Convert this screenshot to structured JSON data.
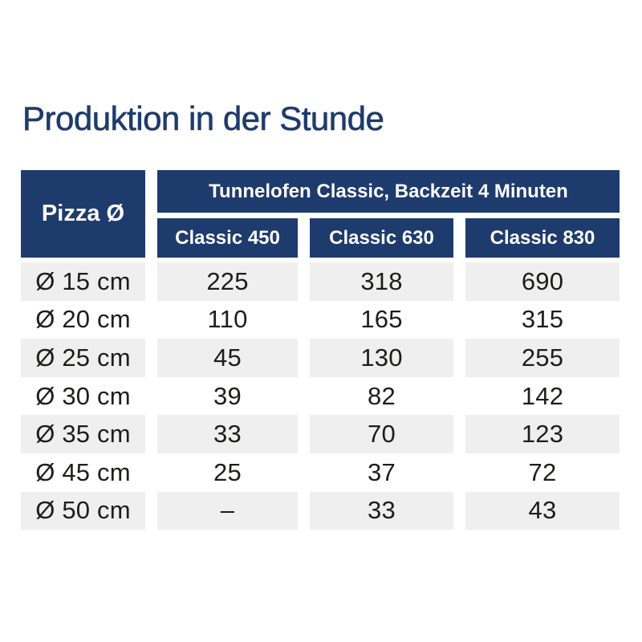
{
  "page": {
    "title": "Produktion in der Stunde"
  },
  "table": {
    "corner_label": "Pizza Ø",
    "group_header": "Tunnelofen Classic, Backzeit 4 Minuten",
    "columns": [
      "Classic 450",
      "Classic 630",
      "Classic 830"
    ],
    "rows": [
      {
        "label": "Ø 15 cm",
        "values": [
          "225",
          "318",
          "690"
        ]
      },
      {
        "label": "Ø 20 cm",
        "values": [
          "110",
          "165",
          "315"
        ]
      },
      {
        "label": "Ø 25 cm",
        "values": [
          "45",
          "130",
          "255"
        ]
      },
      {
        "label": "Ø 30 cm",
        "values": [
          "39",
          "82",
          "142"
        ]
      },
      {
        "label": "Ø 35 cm",
        "values": [
          "33",
          "70",
          "123"
        ]
      },
      {
        "label": "Ø 45 cm",
        "values": [
          "25",
          "37",
          "72"
        ]
      },
      {
        "label": "Ø 50 cm",
        "values": [
          "–",
          "33",
          "43"
        ]
      }
    ]
  },
  "colors": {
    "brand_blue": "#1e3b6e",
    "row_alt_gray": "#efefef",
    "data_text": "#1d1d1b",
    "header_text": "#ffffff",
    "background": "#ffffff"
  }
}
